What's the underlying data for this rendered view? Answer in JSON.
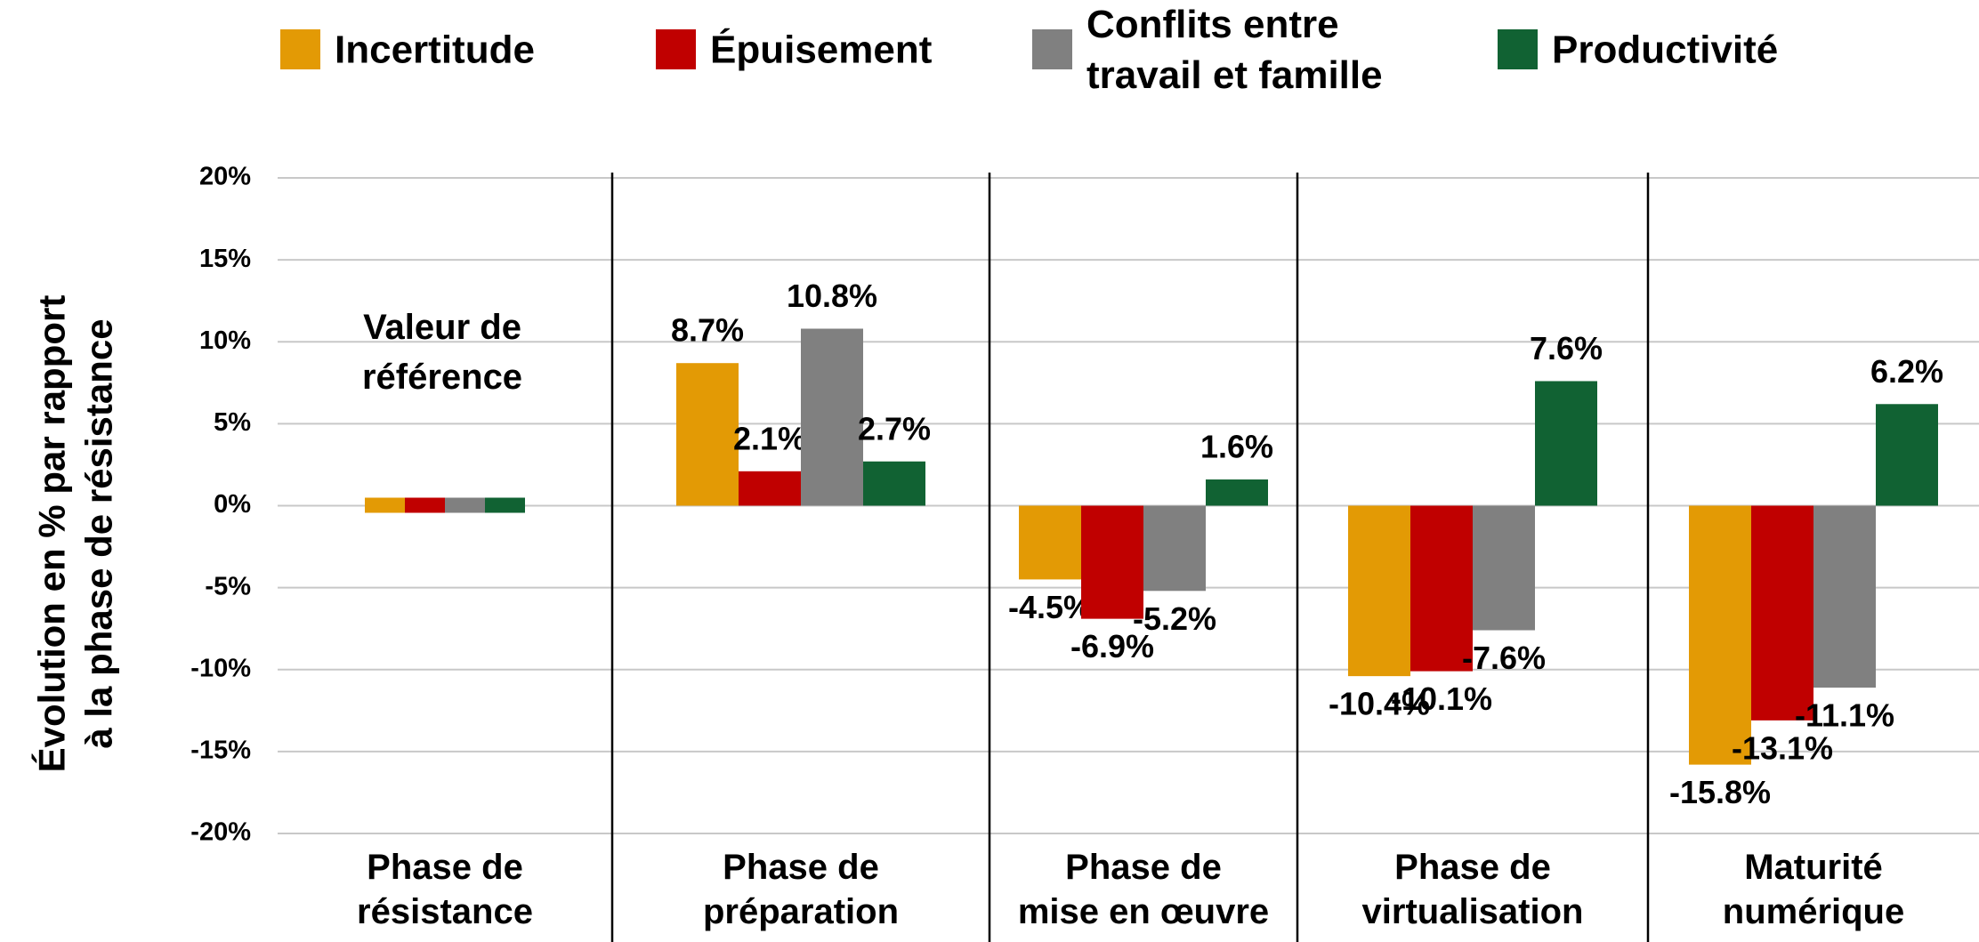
{
  "chart_data": {
    "type": "bar",
    "categories": [
      "Phase de\nrésistance",
      "Phase de\npréparation",
      "Phase de\nmise en œuvre",
      "Phase de\nvirtualisation",
      "Maturité\nnumérique"
    ],
    "series": [
      {
        "name": "Incertitude",
        "color": "#e39a05",
        "values": [
          0,
          8.7,
          -4.5,
          -10.4,
          -15.8
        ],
        "value_labels": [
          null,
          "8.7%",
          "-4.5%",
          "-10.4%",
          "-15.8%"
        ]
      },
      {
        "name": "Épuisement",
        "color": "#c00000",
        "values": [
          0,
          2.1,
          -6.9,
          -10.1,
          -13.1
        ],
        "value_labels": [
          null,
          "2.1%",
          "-6.9%",
          "-10.1%",
          "-13.1%"
        ]
      },
      {
        "name": "Conflits entre\ntravail et famille",
        "color": "#808080",
        "values": [
          0,
          10.8,
          -5.2,
          -7.6,
          -11.1
        ],
        "value_labels": [
          null,
          "10.8%",
          "-5.2%",
          "-7.6%",
          "-11.1%"
        ]
      },
      {
        "name": "Productivité",
        "color": "#116233",
        "values": [
          0,
          2.7,
          1.6,
          7.6,
          6.2
        ],
        "value_labels": [
          null,
          "2.7%",
          "1.6%",
          "7.6%",
          "6.2%"
        ]
      }
    ],
    "y_label": "Évolution en % par rapport\nà la phase de résistance",
    "annotation": "Valeur de\nréférence",
    "ylim": [
      -20,
      20
    ],
    "yticks": [
      {
        "value": -20,
        "label": "-20%"
      },
      {
        "value": -15,
        "label": "-15%"
      },
      {
        "value": -10,
        "label": "-10%"
      },
      {
        "value": -5,
        "label": "-5%"
      },
      {
        "value": 0,
        "label": "0%"
      },
      {
        "value": 5,
        "label": "5%"
      },
      {
        "value": 10,
        "label": "10%"
      },
      {
        "value": 15,
        "label": "15%"
      },
      {
        "value": 20,
        "label": "20%"
      }
    ],
    "grid": true,
    "legend": "top"
  }
}
